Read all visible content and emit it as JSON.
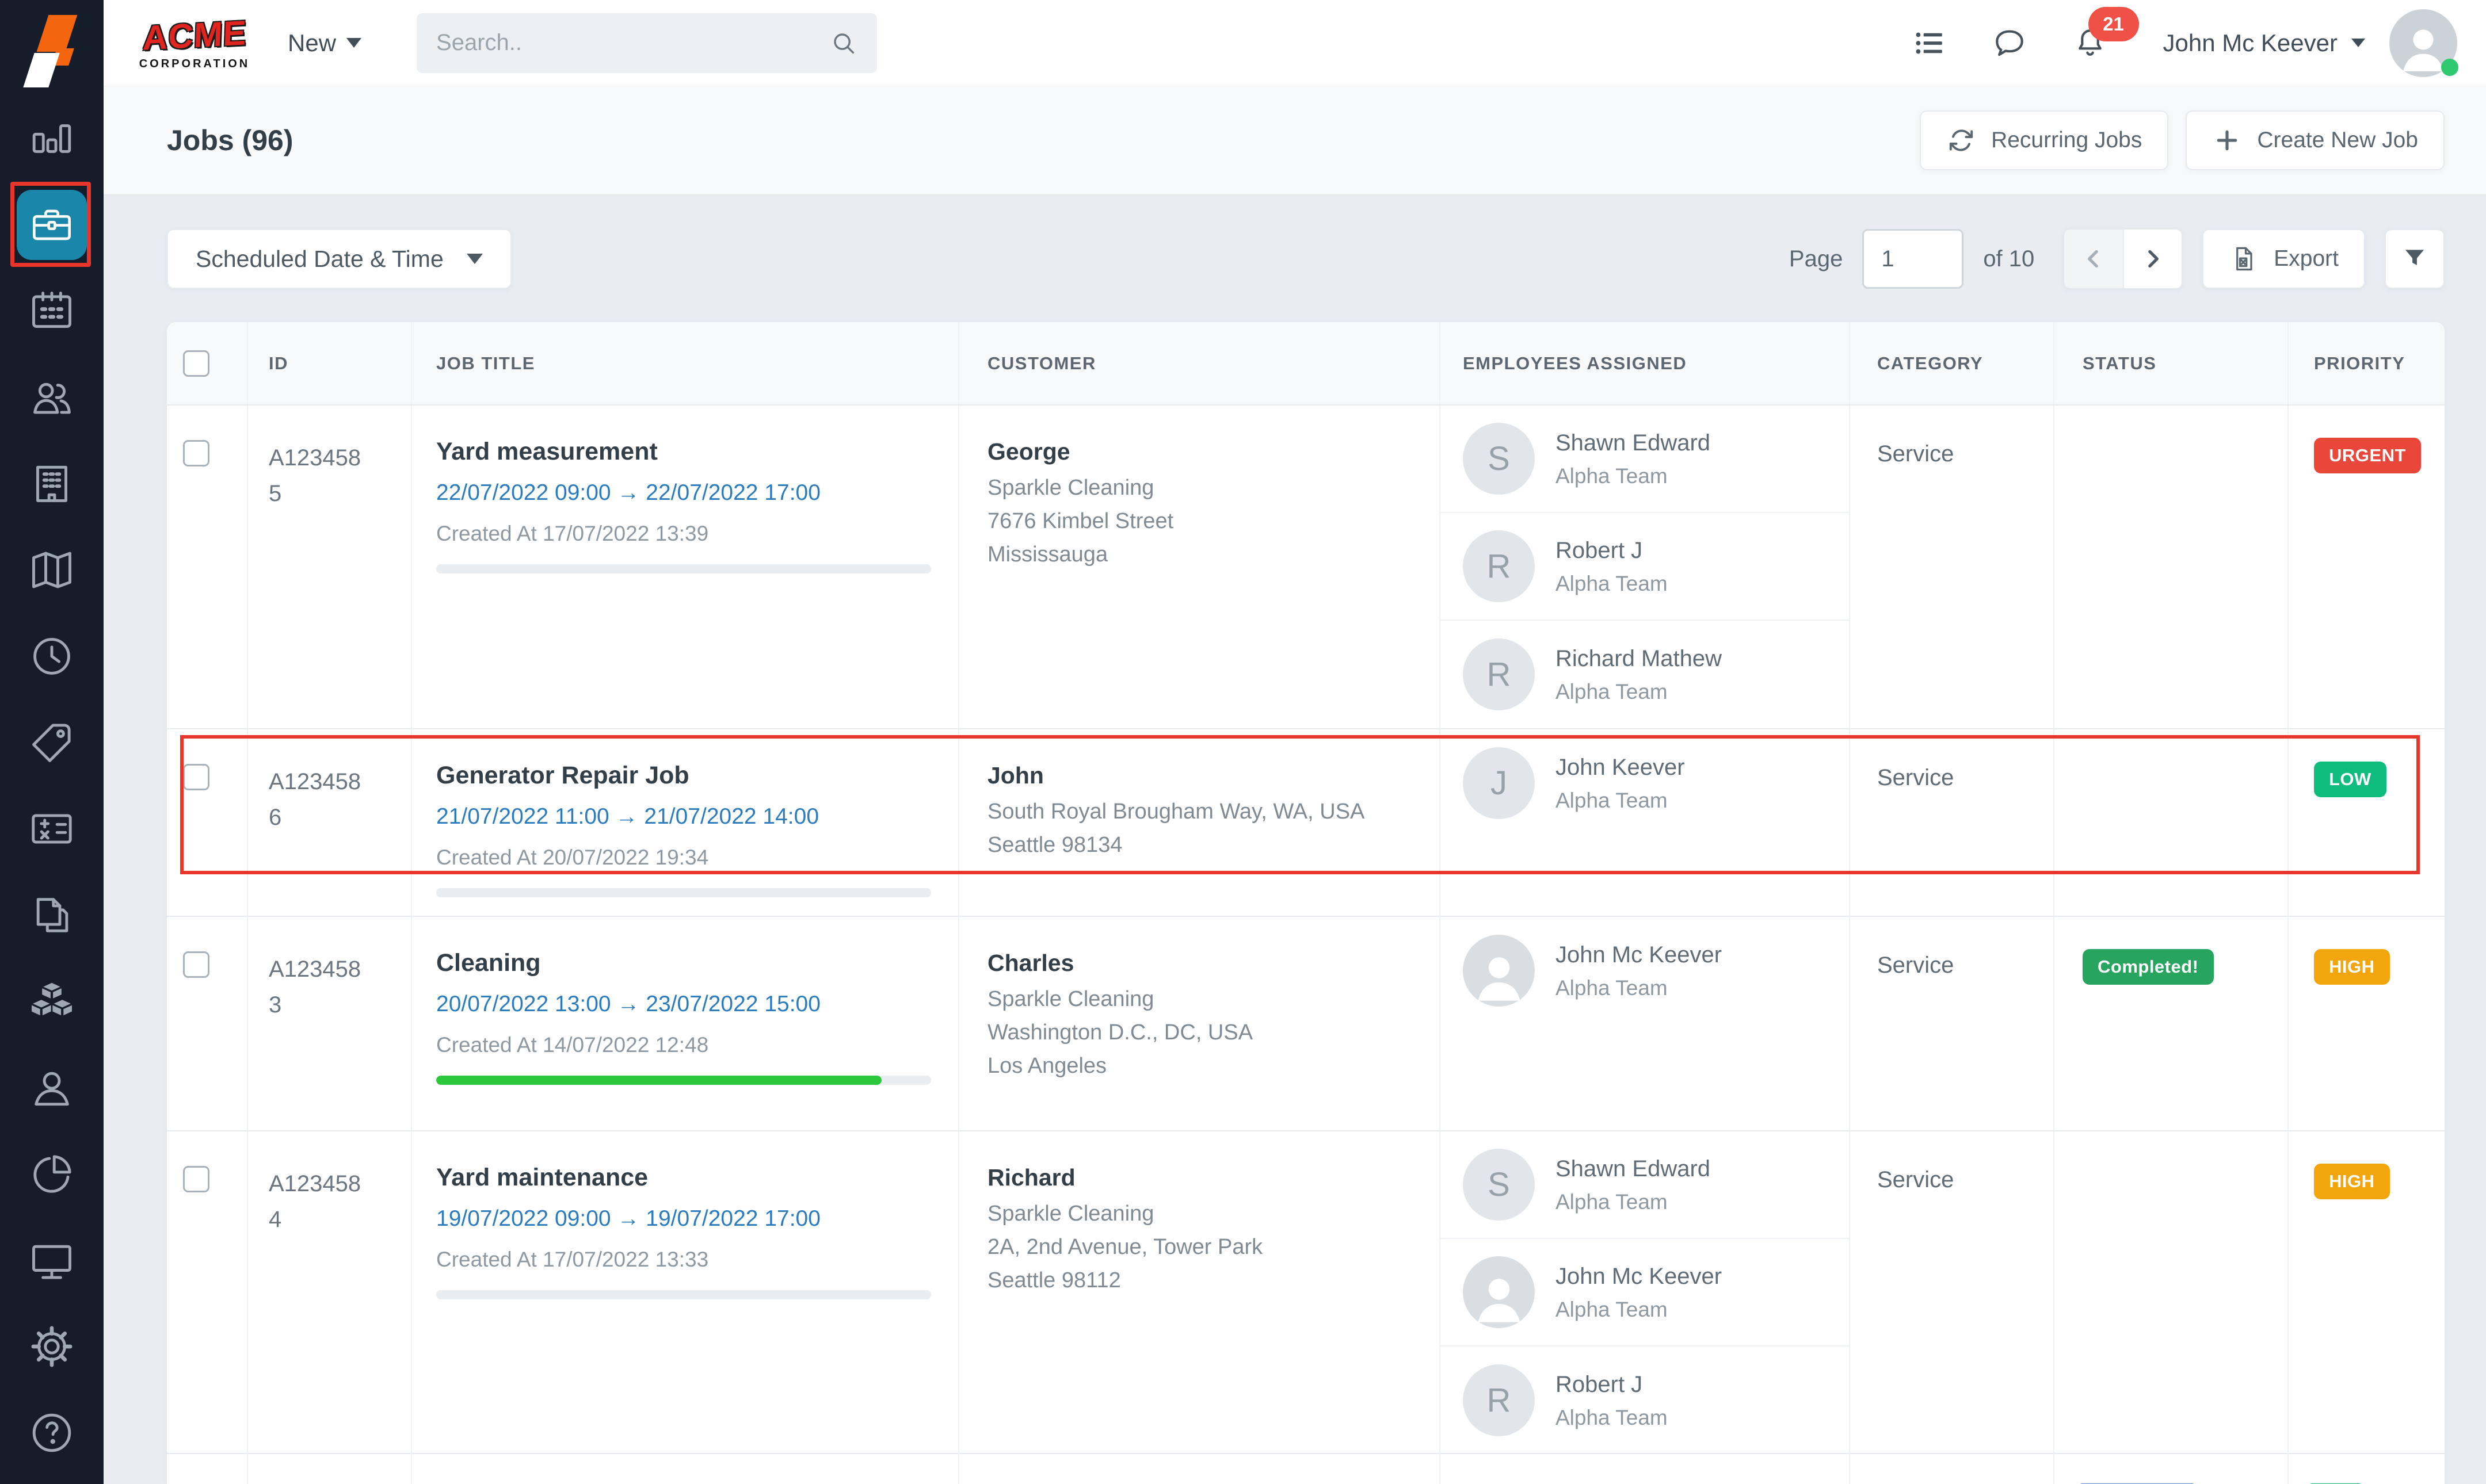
{
  "brand": {
    "acme_line1": "ACME",
    "acme_line2": "CORPORATION"
  },
  "header": {
    "new_label": "New",
    "search_placeholder": "Search..",
    "notification_count": "21",
    "user_name": "John Mc Keever"
  },
  "sidebar": {
    "active_item": "jobs",
    "items": [
      {
        "name": "dashboard"
      },
      {
        "name": "jobs"
      },
      {
        "name": "calendar"
      },
      {
        "name": "teams"
      },
      {
        "name": "organization"
      },
      {
        "name": "map"
      },
      {
        "name": "timesheet"
      },
      {
        "name": "tags"
      },
      {
        "name": "estimates"
      },
      {
        "name": "invoices"
      },
      {
        "name": "parts"
      },
      {
        "name": "customers"
      },
      {
        "name": "reports"
      },
      {
        "name": "devices"
      },
      {
        "name": "settings"
      },
      {
        "name": "help"
      }
    ]
  },
  "page_header": {
    "title": "Jobs (96)",
    "recurring_jobs_label": "Recurring Jobs",
    "create_new_job_label": "Create New Job"
  },
  "toolbar": {
    "sort_label": "Scheduled Date & Time",
    "page_label": "Page",
    "page_value": "1",
    "of_label": "of 10",
    "export_label": "Export"
  },
  "table": {
    "columns": [
      "",
      "ID",
      "JOB TITLE",
      "CUSTOMER",
      "EMPLOYEES ASSIGNED",
      "CATEGORY",
      "STATUS",
      "PRIORITY"
    ],
    "rows": [
      {
        "id": "A1234585",
        "title": "Yard measurement",
        "schedule": "22/07/2022 09:00 → 22/07/2022 17:00",
        "created": "Created At 17/07/2022 13:39",
        "progress": 0,
        "customer": {
          "name": "George",
          "lines": [
            "Sparkle Cleaning",
            "7676 Kimbel Street",
            "Mississauga"
          ]
        },
        "employees": [
          {
            "avatar": "S",
            "name": "Shawn Edward",
            "team": "Alpha Team"
          },
          {
            "avatar": "R",
            "name": "Robert J",
            "team": "Alpha Team"
          },
          {
            "avatar": "R",
            "name": "Richard Mathew",
            "team": "Alpha Team"
          }
        ],
        "category": "Service",
        "status": null,
        "status_color": null,
        "priority": "URGENT",
        "priority_color": "#e8473a",
        "highlighted": false
      },
      {
        "id": "A1234586",
        "title": "Generator Repair Job",
        "schedule": "21/07/2022 11:00 → 21/07/2022 14:00",
        "created": "Created At 20/07/2022 19:34",
        "progress": 0,
        "customer": {
          "name": "John",
          "lines": [
            "South Royal Brougham Way, WA, USA",
            "Seattle 98134"
          ]
        },
        "employees": [
          {
            "avatar": "J",
            "name": "John Keever",
            "team": "Alpha Team"
          }
        ],
        "category": "Service",
        "status": null,
        "status_color": null,
        "priority": "LOW",
        "priority_color": "#0ebd7d",
        "highlighted": true
      },
      {
        "id": "A1234583",
        "title": "Cleaning",
        "schedule": "20/07/2022 13:00 → 23/07/2022 15:00",
        "created": "Created At 14/07/2022 12:48",
        "progress": 90,
        "customer": {
          "name": "Charles",
          "lines": [
            "Sparkle Cleaning",
            "Washington D.C., DC, USA",
            "Los Angeles"
          ]
        },
        "employees": [
          {
            "avatar": "photo",
            "name": "John Mc Keever",
            "team": "Alpha Team"
          }
        ],
        "category": "Service",
        "status": "Completed!",
        "status_color": "#27a55f",
        "priority": "HIGH",
        "priority_color": "#f2a50d",
        "highlighted": false
      },
      {
        "id": "A1234584",
        "title": "Yard maintenance",
        "schedule": "19/07/2022 09:00 → 19/07/2022 17:00",
        "created": "Created At 17/07/2022 13:33",
        "progress": 0,
        "customer": {
          "name": "Richard",
          "lines": [
            "Sparkle Cleaning",
            "2A, 2nd Avenue, Tower Park",
            "Seattle 98112"
          ]
        },
        "employees": [
          {
            "avatar": "S",
            "name": "Shawn Edward",
            "team": "Alpha Team"
          },
          {
            "avatar": "photo",
            "name": "John Mc Keever",
            "team": "Alpha Team"
          },
          {
            "avatar": "R",
            "name": "Robert J",
            "team": "Alpha Team"
          }
        ],
        "category": "Service",
        "status": null,
        "status_color": null,
        "priority": "HIGH",
        "priority_color": "#f2a50d",
        "highlighted": false
      },
      {
        "partial": true,
        "status_color": "#4a90d8",
        "priority_color": "#10ba75"
      }
    ]
  },
  "colors": {
    "accent": "#1a86a9",
    "annotation": "#e8362c",
    "link": "#2b7cbf",
    "progress_fill": "#2bc83c",
    "notification_badge": "#ef5146",
    "online_dot": "#2fca70"
  }
}
